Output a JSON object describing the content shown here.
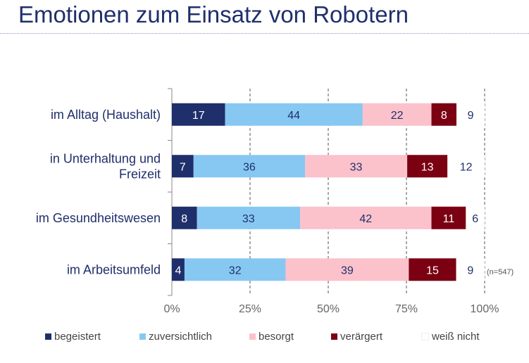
{
  "title": "Emotionen zum Einsatz von Robotern",
  "note": "(n=547)",
  "chart_data": {
    "type": "bar",
    "orientation": "horizontal",
    "stacked": true,
    "percent_scale": true,
    "categories": [
      [
        "im Alltag (Haushalt)"
      ],
      [
        "in Unterhaltung und",
        "Freizeit"
      ],
      [
        "im Gesundheitswesen"
      ],
      [
        "im Arbeitsumfeld"
      ]
    ],
    "series": [
      {
        "name": "begeistert",
        "values": [
          17,
          7,
          8,
          4
        ],
        "color": "#1f2f6b",
        "label_color": "#ffffff"
      },
      {
        "name": "zuversichtlich",
        "values": [
          44,
          36,
          33,
          32
        ],
        "color": "#87c8f2",
        "label_color": "#1f2f6b"
      },
      {
        "name": "besorgt",
        "values": [
          22,
          33,
          42,
          39
        ],
        "color": "#fbc2cc",
        "label_color": "#1f2f6b"
      },
      {
        "name": "verärgert",
        "values": [
          8,
          13,
          11,
          15
        ],
        "color": "#7a0012",
        "label_color": "#ffffff"
      },
      {
        "name": "weiß nicht",
        "values": [
          9,
          12,
          6,
          9
        ],
        "color": "#ffffff",
        "label_color": "#1f2f6b"
      }
    ],
    "xlim": [
      0,
      100
    ],
    "xticks": [
      "0%",
      "25%",
      "50%",
      "75%",
      "100%"
    ],
    "grid": "vertical dashed",
    "legend_position": "bottom"
  }
}
